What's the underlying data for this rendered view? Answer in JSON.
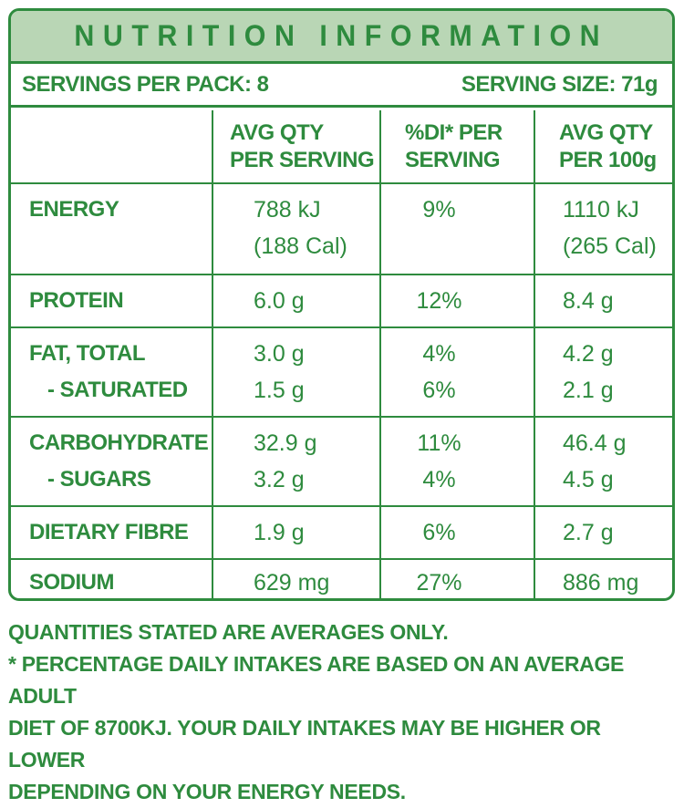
{
  "title": "NUTRITION INFORMATION",
  "servings_per_pack": "SERVINGS PER PACK: 8",
  "serving_size": "SERVING SIZE: 71g",
  "headers": {
    "col2_line1": "AVG QTY",
    "col2_line2": "PER SERVING",
    "col3_line1": "%DI* PER",
    "col3_line2": "SERVING",
    "col4_line1": "AVG QTY",
    "col4_line2": "PER 100g"
  },
  "rows": [
    {
      "name": "ENERGY",
      "per_serving": "788 kJ",
      "per_serving_2": "(188 Cal)",
      "di": "9%",
      "per_100g": "1110 kJ",
      "per_100g_2": "(265 Cal)"
    },
    {
      "name": "PROTEIN",
      "per_serving": "6.0 g",
      "di": "12%",
      "per_100g": "8.4 g"
    },
    {
      "name": "FAT, TOTAL",
      "sub": "- SATURATED",
      "per_serving": "3.0 g",
      "per_serving_2": "1.5 g",
      "di": "4%",
      "di_2": "6%",
      "per_100g": "4.2 g",
      "per_100g_2": "2.1 g"
    },
    {
      "name": "CARBOHYDRATE",
      "sub": "- SUGARS",
      "per_serving": "32.9 g",
      "per_serving_2": "3.2 g",
      "di": "11%",
      "di_2": "4%",
      "per_100g": "46.4 g",
      "per_100g_2": "4.5 g"
    },
    {
      "name": "DIETARY FIBRE",
      "per_serving": "1.9 g",
      "di": "6%",
      "per_100g": "2.7 g"
    },
    {
      "name": "SODIUM",
      "per_serving": "629 mg",
      "di": "27%",
      "per_100g": "886 mg"
    }
  ],
  "footer": {
    "line1": "QUANTITIES STATED ARE AVERAGES ONLY.",
    "line2": "* PERCENTAGE DAILY INTAKES ARE BASED ON AN AVERAGE ADULT",
    "line3": "DIET OF 8700KJ. YOUR DAILY INTAKES MAY BE HIGHER OR LOWER",
    "line4": "DEPENDING ON YOUR ENERGY NEEDS."
  },
  "colors": {
    "green": "#2e8b3e",
    "header_bg": "#b9d6b5"
  }
}
